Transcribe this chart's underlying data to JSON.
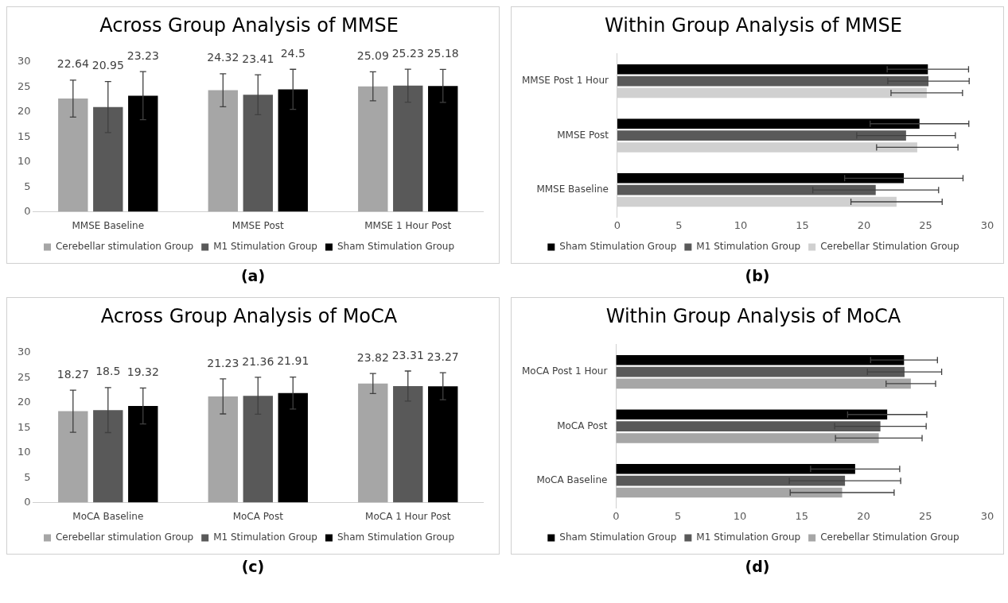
{
  "chart_data": [
    {
      "type": "bar",
      "title": "Across Group Analysis of MMSE",
      "categories": [
        "MMSE Baseline",
        "MMSE Post",
        "MMSE 1 Hour Post"
      ],
      "series": [
        {
          "name": "Cerebellar stimulation Group",
          "color": "#a6a6a6",
          "values": [
            22.64,
            24.32,
            25.09
          ],
          "errors": [
            3.7,
            3.3,
            2.9
          ]
        },
        {
          "name": "M1 Stimulation Group",
          "color": "#595959",
          "values": [
            20.95,
            23.41,
            25.23
          ],
          "errors": [
            5.1,
            4.0,
            3.3
          ]
        },
        {
          "name": "Sham Stimulation Group",
          "color": "#000000",
          "values": [
            23.23,
            24.5,
            25.18
          ],
          "errors": [
            4.8,
            4.0,
            3.3
          ]
        }
      ],
      "ylim": [
        0,
        30
      ],
      "yticks": [
        0,
        5,
        10,
        15,
        20,
        25,
        30
      ],
      "grid": false,
      "legend": "bottom",
      "data_labels": true,
      "annotations": [
        "(a)"
      ]
    },
    {
      "type": "bar",
      "orientation": "horizontal",
      "title": "Within Group Analysis of MMSE",
      "categories": [
        "MMSE Post 1 Hour",
        "MMSE Post",
        "MMSE Baseline"
      ],
      "series": [
        {
          "name": "Sham Stimulation Group",
          "color": "#000000",
          "values": [
            25.18,
            24.5,
            23.23
          ],
          "errors": [
            3.3,
            4.0,
            4.8
          ]
        },
        {
          "name": "M1 Stimulation Group",
          "color": "#595959",
          "values": [
            25.23,
            23.41,
            20.95
          ],
          "errors": [
            3.3,
            4.0,
            5.1
          ]
        },
        {
          "name": "Cerebellar Stimulation Group",
          "color": "#d0d0d0",
          "values": [
            25.09,
            24.32,
            22.64
          ],
          "errors": [
            2.9,
            3.3,
            3.7
          ]
        }
      ],
      "xlim": [
        0,
        30
      ],
      "xticks": [
        0,
        5,
        10,
        15,
        20,
        25,
        30
      ],
      "grid": false,
      "legend": "bottom",
      "annotations": [
        "(b)"
      ]
    },
    {
      "type": "bar",
      "title": "Across Group Analysis of MoCA",
      "categories": [
        "MoCA Baseline",
        "MoCA Post",
        "MoCA 1 Hour Post"
      ],
      "series": [
        {
          "name": "Cerebellar stimulation Group",
          "color": "#a6a6a6",
          "values": [
            18.27,
            21.23,
            23.82
          ],
          "errors": [
            4.2,
            3.5,
            2.0
          ]
        },
        {
          "name": "M1 Stimulation Group",
          "color": "#595959",
          "values": [
            18.5,
            21.36,
            23.31
          ],
          "errors": [
            4.5,
            3.7,
            3.0
          ]
        },
        {
          "name": "Sham Stimulation Group",
          "color": "#000000",
          "values": [
            19.32,
            21.91,
            23.27
          ],
          "errors": [
            3.6,
            3.2,
            2.7
          ]
        }
      ],
      "ylim": [
        0,
        30
      ],
      "yticks": [
        0,
        5,
        10,
        15,
        20,
        25,
        30
      ],
      "grid": false,
      "legend": "bottom",
      "data_labels": true,
      "annotations": [
        "(c)"
      ]
    },
    {
      "type": "bar",
      "orientation": "horizontal",
      "title": "Within Group Analysis of MoCA",
      "categories": [
        "MoCA Post 1 Hour",
        "MoCA Post",
        "MoCA Baseline"
      ],
      "series": [
        {
          "name": "Sham Stimulation Group",
          "color": "#000000",
          "values": [
            23.27,
            21.91,
            19.32
          ],
          "errors": [
            2.7,
            3.2,
            3.6
          ]
        },
        {
          "name": "M1 Stimulation Group",
          "color": "#595959",
          "values": [
            23.31,
            21.36,
            18.5
          ],
          "errors": [
            3.0,
            3.7,
            4.5
          ]
        },
        {
          "name": "Cerebellar Stimulation Group",
          "color": "#a6a6a6",
          "values": [
            23.82,
            21.23,
            18.27
          ],
          "errors": [
            2.0,
            3.5,
            4.2
          ]
        }
      ],
      "xlim": [
        0,
        30
      ],
      "xticks": [
        0,
        5,
        10,
        15,
        20,
        25,
        30
      ],
      "grid": false,
      "legend": "bottom",
      "annotations": [
        "(d)"
      ]
    }
  ]
}
